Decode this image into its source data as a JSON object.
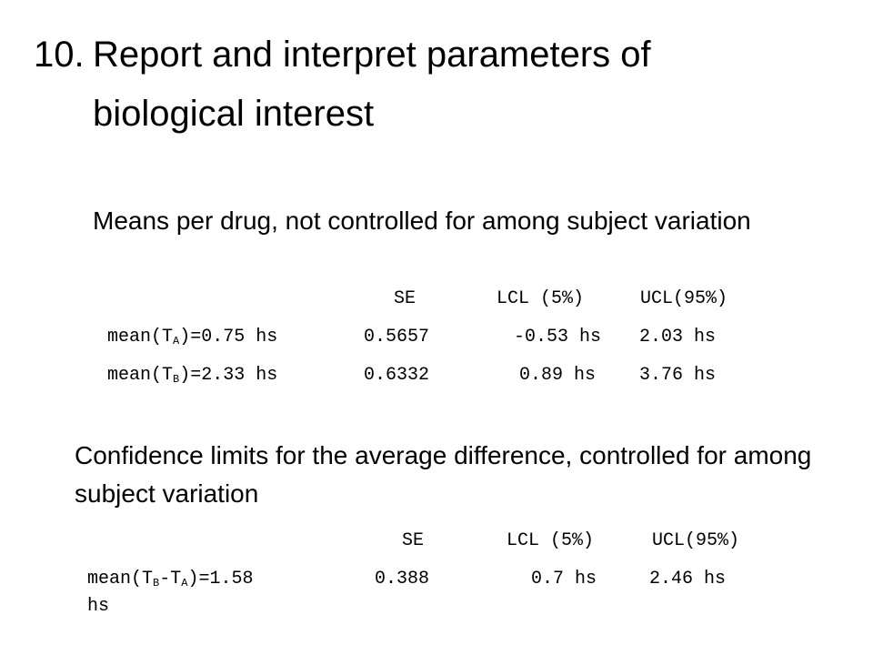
{
  "slide": {
    "title_number": "10.",
    "title_line1": "Report and interpret parameters of",
    "title_line2": "biological interest"
  },
  "section1": {
    "heading": "Means per drug, not controlled for among subject variation",
    "columns": {
      "se": "SE",
      "lcl": "LCL (5%)",
      "ucl": "UCL(95%)"
    },
    "rows": [
      {
        "label_pre": "mean(T",
        "label_sub": "A",
        "label_post": ")=0.75 hs",
        "se": "0.5657",
        "lcl": "-0.53 hs",
        "ucl": "2.03 hs"
      },
      {
        "label_pre": "mean(T",
        "label_sub": "B",
        "label_post": ")=2.33 hs",
        "se": "0.6332",
        "lcl": "0.89 hs",
        "ucl": "3.76 hs"
      }
    ]
  },
  "section2": {
    "heading": "Confidence limits for the average difference, controlled for among subject variation",
    "columns": {
      "se": "SE",
      "lcl": "LCL (5%)",
      "ucl": "UCL(95%)"
    },
    "row": {
      "p1": "mean(T",
      "s1": "B",
      "p2": "-T",
      "s2": "A",
      "p3": ")=1.58",
      "p4": "hs",
      "se": "0.388",
      "lcl": "0.7 hs",
      "ucl": "2.46 hs"
    }
  }
}
